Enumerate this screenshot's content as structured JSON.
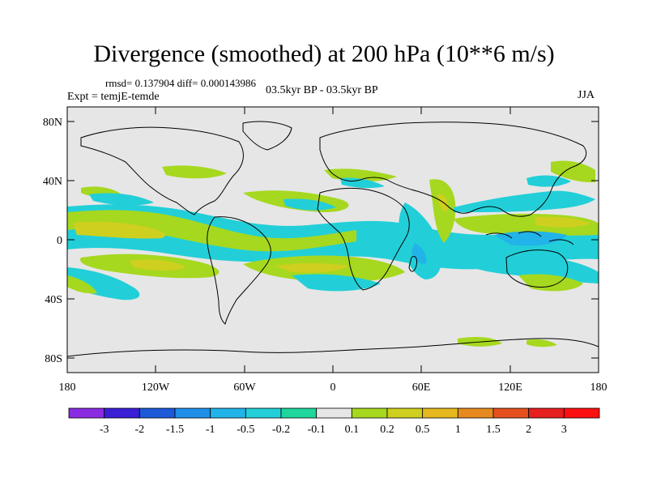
{
  "title": "Divergence (smoothed) at 200 hPa (10**6 m/s)",
  "stats": "rmsd= 0.137904 diff= 0.000143986",
  "expt": "Expt = temjE-temde",
  "period": "03.5kyr BP - 03.5kyr BP",
  "season": "JJA",
  "lat_labels": [
    "80N",
    "40N",
    "0",
    "40S",
    "80S"
  ],
  "lon_labels": [
    "180",
    "120W",
    "60W",
    "0",
    "60E",
    "120E",
    "180"
  ],
  "colorbar": {
    "labels": [
      "-3",
      "-2",
      "-1.5",
      "-1",
      "-0.5",
      "-0.2",
      "-0.1",
      "0.1",
      "0.2",
      "0.5",
      "1",
      "1.5",
      "2",
      "3"
    ],
    "colors": [
      "#8a2be2",
      "#3a1fd6",
      "#1c5ad8",
      "#1f8fe8",
      "#22b3e8",
      "#22cfd8",
      "#1fd69c",
      "#e6e6e6",
      "#a6d81f",
      "#cfcf1f",
      "#e6b81f",
      "#e68a1f",
      "#e6501f",
      "#e61f1f",
      "#ff1010"
    ]
  },
  "background_color": "#e6e6e6"
}
